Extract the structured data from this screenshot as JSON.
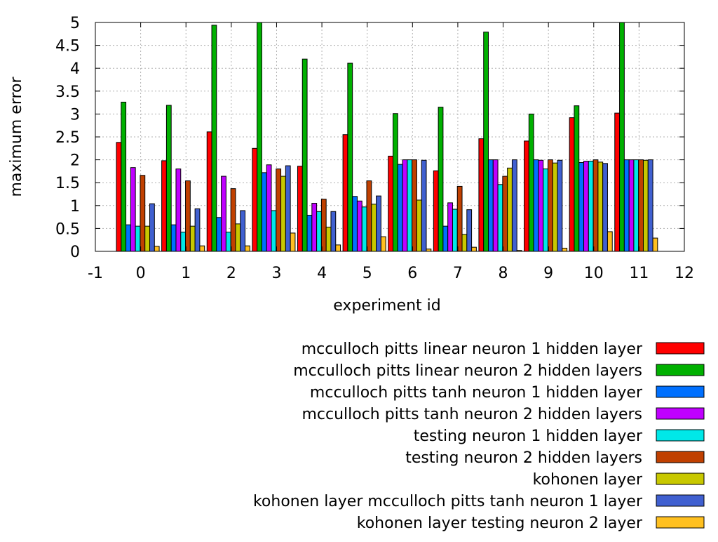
{
  "chart_data": {
    "type": "bar",
    "xlabel": "experiment id",
    "ylabel": "maximum error",
    "xlim": [
      -1,
      12
    ],
    "ylim": [
      0,
      5
    ],
    "x_ticks": [
      "-1",
      "0",
      "1",
      "2",
      "3",
      "4",
      "5",
      "6",
      "7",
      "8",
      "9",
      "10",
      "11",
      "12"
    ],
    "y_ticks": [
      "0",
      "0.5",
      "1",
      "1.5",
      "2",
      "2.5",
      "3",
      "3.5",
      "4",
      "4.5",
      "5"
    ],
    "categories": [
      0,
      1,
      2,
      3,
      4,
      5,
      6,
      7,
      8,
      9,
      10,
      11
    ],
    "grid": true,
    "legend_position": "bottom-right",
    "series": [
      {
        "name": "mcculloch pitts linear neuron 1 hidden layer",
        "color": "#ff0000",
        "values": [
          2.38,
          1.98,
          2.61,
          2.25,
          1.86,
          2.55,
          2.08,
          1.76,
          2.46,
          2.41,
          2.92,
          3.02
        ]
      },
      {
        "name": "mcculloch pitts linear neuron 2 hidden layers",
        "color": "#00b000",
        "values": [
          3.26,
          3.19,
          4.94,
          5.0,
          4.2,
          4.11,
          3.01,
          3.15,
          4.79,
          3.0,
          3.18,
          5.0
        ]
      },
      {
        "name": "mcculloch pitts tanh neuron 1 hidden layer",
        "color": "#0070ff",
        "values": [
          0.58,
          0.58,
          0.74,
          1.72,
          0.79,
          1.2,
          1.9,
          0.55,
          2.0,
          2.0,
          1.94,
          2.0
        ]
      },
      {
        "name": "mcculloch pitts tanh neuron 2 hidden layers",
        "color": "#c000ff",
        "values": [
          1.83,
          1.8,
          1.64,
          1.89,
          1.05,
          1.1,
          2.0,
          1.06,
          2.0,
          1.99,
          1.97,
          2.0
        ]
      },
      {
        "name": "testing neuron 1 hidden layer",
        "color": "#00e8e8",
        "values": [
          0.55,
          0.42,
          0.42,
          0.89,
          0.87,
          0.97,
          2.0,
          0.92,
          1.46,
          1.8,
          1.97,
          2.0
        ]
      },
      {
        "name": "testing neuron 2 hidden layers",
        "color": "#c04000",
        "values": [
          1.66,
          1.54,
          1.37,
          1.8,
          1.14,
          1.54,
          2.0,
          1.42,
          1.64,
          2.0,
          2.0,
          2.0
        ]
      },
      {
        "name": "kohonen layer",
        "color": "#c8c800",
        "values": [
          0.55,
          0.55,
          0.6,
          1.64,
          0.53,
          1.03,
          1.12,
          0.37,
          1.82,
          1.93,
          1.95,
          1.99
        ]
      },
      {
        "name": "kohonen layer mcculloch pitts tanh neuron 1 layer",
        "color": "#4060d0",
        "values": [
          1.04,
          0.93,
          0.89,
          1.87,
          0.87,
          1.21,
          1.99,
          0.91,
          2.0,
          1.99,
          1.92,
          2.0
        ]
      },
      {
        "name": "kohonen layer testing neuron 2 layer",
        "color": "#ffc020",
        "values": [
          0.11,
          0.12,
          0.12,
          0.4,
          0.14,
          0.32,
          0.05,
          0.09,
          0.02,
          0.07,
          0.43,
          0.29
        ]
      }
    ]
  }
}
